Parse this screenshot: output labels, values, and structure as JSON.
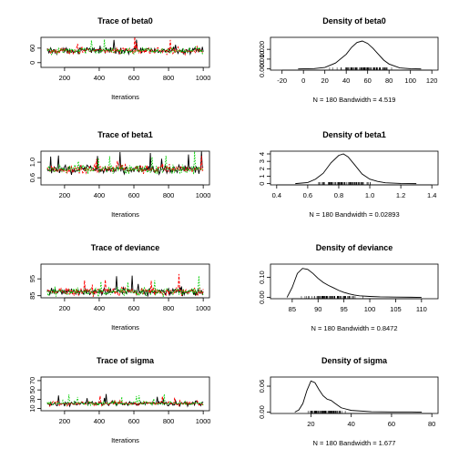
{
  "chart_data": [
    {
      "type": "line",
      "title": "Trace of beta0",
      "xlabel": "Iterations",
      "xlim": [
        100,
        1000
      ],
      "xticks": [
        200,
        400,
        600,
        800,
        1000
      ],
      "ylim": [
        -15,
        100
      ],
      "yticks": [
        0,
        60
      ],
      "center": 50,
      "spread": 10,
      "colors": [
        "#000000",
        "#ff0000",
        "#00cc00"
      ]
    },
    {
      "type": "line",
      "title": "Density of beta0",
      "xlabel": "N = 180   Bandwidth = 4.519",
      "xlim": [
        -25,
        120
      ],
      "xticks": [
        -20,
        0,
        20,
        40,
        60,
        80,
        100,
        120
      ],
      "ylim": [
        0,
        0.031
      ],
      "yticks": [
        "0.000",
        "0.010",
        "0.020"
      ],
      "x": [
        -5,
        10,
        20,
        30,
        40,
        45,
        50,
        55,
        60,
        65,
        70,
        75,
        80,
        90,
        100,
        110
      ],
      "y": [
        0.0,
        0.0003,
        0.0015,
        0.006,
        0.015,
        0.022,
        0.027,
        0.0285,
        0.026,
        0.021,
        0.015,
        0.009,
        0.005,
        0.001,
        0.0002,
        0.0
      ],
      "rug_min": 15,
      "rug_max": 95
    },
    {
      "type": "line",
      "title": "Trace of beta1",
      "xlabel": "Iterations",
      "xlim": [
        100,
        1000
      ],
      "xticks": [
        200,
        400,
        600,
        800,
        1000
      ],
      "ylim": [
        0.45,
        1.25
      ],
      "yticks": [
        "0.6",
        "1.0"
      ],
      "center": 0.82,
      "spread": 0.08,
      "colors": [
        "#000000",
        "#ff0000",
        "#00cc00"
      ]
    },
    {
      "type": "line",
      "title": "Density of beta1",
      "xlabel": "N = 180   Bandwidth = 0.02893",
      "xlim": [
        0.4,
        1.4
      ],
      "xticks": [
        "0.4",
        "0.6",
        "0.8",
        "1.0",
        "1.2",
        "1.4"
      ],
      "ylim": [
        0,
        4.2
      ],
      "yticks": [
        0,
        1,
        2,
        3,
        4
      ],
      "x": [
        0.52,
        0.6,
        0.65,
        0.7,
        0.75,
        0.8,
        0.83,
        0.86,
        0.9,
        0.95,
        1.0,
        1.05,
        1.1,
        1.2,
        1.3
      ],
      "y": [
        0.0,
        0.15,
        0.6,
        1.4,
        2.8,
        3.8,
        4.0,
        3.6,
        2.6,
        1.3,
        0.6,
        0.3,
        0.12,
        0.02,
        0.0
      ],
      "rug_min": 0.57,
      "rug_max": 1.12
    },
    {
      "type": "line",
      "title": "Trace of deviance",
      "xlabel": "Iterations",
      "xlim": [
        100,
        1000
      ],
      "xticks": [
        200,
        400,
        600,
        800,
        1000
      ],
      "ylim": [
        84.5,
        103
      ],
      "yticks": [
        85,
        95
      ],
      "center": 87.5,
      "spread": 1.8,
      "colors": [
        "#000000",
        "#ff0000",
        "#00cc00"
      ]
    },
    {
      "type": "line",
      "title": "Density of deviance",
      "xlabel": "N = 180   Bandwidth = 0.8472",
      "xlim": [
        82,
        112
      ],
      "xticks": [
        85,
        90,
        95,
        100,
        105,
        110
      ],
      "ylim": [
        0,
        0.16
      ],
      "yticks": [
        "0.00",
        "0.10"
      ],
      "x": [
        84,
        85,
        86,
        87,
        88,
        89,
        90,
        91,
        92,
        93,
        94,
        95,
        96,
        97,
        98,
        100,
        102,
        105,
        108,
        110
      ],
      "y": [
        0.0,
        0.05,
        0.12,
        0.145,
        0.14,
        0.12,
        0.095,
        0.075,
        0.06,
        0.048,
        0.035,
        0.025,
        0.018,
        0.012,
        0.008,
        0.005,
        0.003,
        0.002,
        0.001,
        0.0
      ],
      "rug_min": 85,
      "rug_max": 100
    },
    {
      "type": "line",
      "title": "Trace of sigma",
      "xlabel": "Iterations",
      "xlim": [
        100,
        1000
      ],
      "xticks": [
        200,
        400,
        600,
        800,
        1000
      ],
      "ylim": [
        8,
        75
      ],
      "yticks": [
        10,
        30,
        50,
        70
      ],
      "center": 21,
      "spread": 3.5,
      "colors": [
        "#000000",
        "#ff0000",
        "#00cc00"
      ]
    },
    {
      "type": "line",
      "title": "Density of sigma",
      "xlabel": "N = 180   Bandwidth = 1.677",
      "xlim": [
        3,
        80
      ],
      "xticks": [
        20,
        40,
        60,
        80
      ],
      "ylim": [
        0,
        0.078
      ],
      "yticks": [
        "0.00",
        "0.06"
      ],
      "x": [
        12,
        14,
        16,
        18,
        20,
        22,
        24,
        26,
        28,
        30,
        32,
        35,
        40,
        50,
        60,
        70,
        75
      ],
      "y": [
        0.0,
        0.005,
        0.02,
        0.05,
        0.072,
        0.068,
        0.052,
        0.038,
        0.03,
        0.027,
        0.02,
        0.01,
        0.004,
        0.001,
        0.0005,
        0.0005,
        0.0
      ],
      "rug_min": 14,
      "rug_max": 40
    }
  ]
}
